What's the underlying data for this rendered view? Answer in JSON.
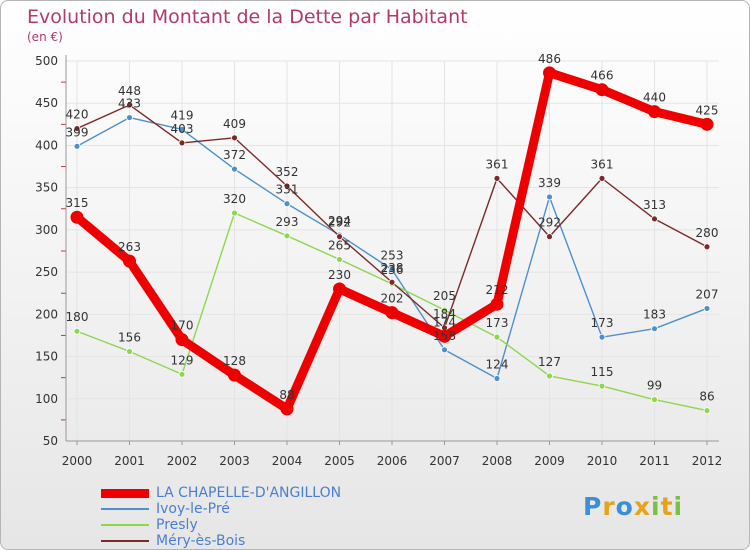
{
  "header": {
    "title": "Evolution du Montant de la Dette par Habitant",
    "unit": "(en €)"
  },
  "colors": {
    "title": "#b23a6a",
    "legend_text": "#4a7fd0",
    "axis": "#999999",
    "grid": "#e4e4e4",
    "background": "#ffffff"
  },
  "chart_data": {
    "type": "line",
    "title": "Evolution du Montant de la Dette par Habitant",
    "ylabel": "(en €)",
    "xlabel": "",
    "x": [
      "2000",
      "2001",
      "2002",
      "2003",
      "2004",
      "2005",
      "2006",
      "2007",
      "2008",
      "2009",
      "2010",
      "2011",
      "2012"
    ],
    "ylim": [
      50,
      500
    ],
    "yticks": [
      50,
      100,
      150,
      200,
      250,
      300,
      350,
      400,
      450,
      500
    ],
    "grid": true,
    "legend": "bottom-left",
    "series": [
      {
        "name": "LA CHAPELLE-D'ANGILLON",
        "color": "#ee0000",
        "values": [
          315,
          263,
          170,
          128,
          88,
          230,
          202,
          174,
          212,
          486,
          466,
          440,
          425
        ]
      },
      {
        "name": "Ivoy-le-Pré",
        "color": "#4f8fca",
        "values": [
          399,
          433,
          419,
          372,
          331,
          294,
          253,
          158,
          124,
          339,
          173,
          183,
          207
        ]
      },
      {
        "name": "Presly",
        "color": "#8ed650",
        "values": [
          180,
          156,
          129,
          320,
          293,
          265,
          236,
          205,
          173,
          127,
          115,
          99,
          86
        ]
      },
      {
        "name": "Méry-ès-Bois",
        "color": "#7a2a2a",
        "values": [
          420,
          448,
          403,
          409,
          352,
          292,
          238,
          184,
          361,
          292,
          361,
          313,
          280
        ]
      }
    ]
  },
  "logo": {
    "letters": [
      "P",
      "r",
      "o",
      "x",
      "i",
      "t",
      "i"
    ],
    "colors": [
      "#3b8ed8",
      "#e8a21a",
      "#3b8ed8",
      "#e8a21a",
      "#7ac142",
      "#e8a21a",
      "#7ac142"
    ]
  }
}
